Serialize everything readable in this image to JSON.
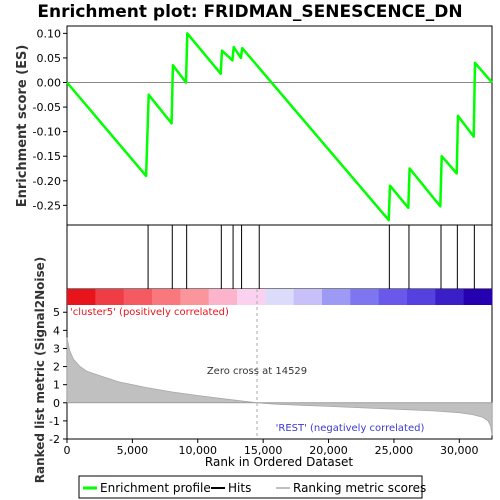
{
  "chart_data": {
    "type": "line",
    "title": "Enrichment plot: FRIDMAN_SENESCENCE_DN",
    "es_panel": {
      "ylabel": "Enrichment score (ES)",
      "ylim": [
        -0.29,
        0.115
      ],
      "yticks": [
        0.1,
        0.05,
        0.0,
        -0.05,
        -0.1,
        -0.15,
        -0.2,
        -0.25
      ],
      "ytick_labels": [
        "0.10",
        "0.05",
        "0.00",
        "-0.05",
        "-0.10",
        "-0.15",
        "-0.20",
        "-0.25"
      ],
      "series": [
        {
          "name": "Enrichment profile",
          "color": "#00ff00",
          "x": [
            0,
            6050,
            6250,
            8000,
            8100,
            9100,
            9200,
            11750,
            11850,
            12650,
            12750,
            13300,
            13400,
            24600,
            24700,
            26100,
            26200,
            28550,
            28650,
            29800,
            29900,
            31100,
            31200,
            32500
          ],
          "y": [
            0.0,
            -0.19,
            -0.025,
            -0.083,
            0.035,
            0.0,
            0.1,
            0.018,
            0.065,
            0.045,
            0.072,
            0.05,
            0.07,
            -0.28,
            -0.21,
            -0.255,
            -0.175,
            -0.252,
            -0.15,
            -0.185,
            -0.068,
            -0.11,
            0.04,
            0.0
          ]
        }
      ]
    },
    "hits": {
      "name": "Hits",
      "color": "#000000",
      "positions": [
        6200,
        8050,
        9150,
        11800,
        12700,
        13350,
        14700,
        24650,
        26150,
        28600,
        29850,
        31150
      ]
    },
    "heatmap_bar": {
      "colors": [
        "#e8141c",
        "#f03c45",
        "#f55a62",
        "#f8787e",
        "#fa969b",
        "#fcb4cc",
        "#fad2f0",
        "#dcdcfa",
        "#c8c0f8",
        "#9d9af5",
        "#7d76f0",
        "#6a58ec",
        "#5540e0",
        "#3a1ec8",
        "#2400b0"
      ]
    },
    "metric_panel": {
      "ylabel": "Ranked list metric (Signal2Noise)",
      "ylim": [
        -2.0,
        5.4
      ],
      "yticks": [
        5,
        4,
        3,
        2,
        1,
        0,
        -1,
        -2
      ],
      "ytick_labels": [
        "5",
        "4",
        "3",
        "2",
        "1",
        "0",
        "-1",
        "-2"
      ],
      "series": [
        {
          "name": "Ranking metric scores",
          "color": "#c0c0c0",
          "x": [
            0,
            200,
            500,
            1000,
            1500,
            2500,
            4000,
            6000,
            8000,
            10000,
            12000,
            14529,
            16000,
            18000,
            20000,
            22000,
            24000,
            26000,
            28000,
            30000,
            31000,
            31800,
            32200,
            32400,
            32500
          ],
          "y": [
            3.6,
            2.9,
            2.4,
            2.0,
            1.75,
            1.5,
            1.15,
            0.85,
            0.6,
            0.4,
            0.22,
            0.0,
            -0.08,
            -0.14,
            -0.2,
            -0.26,
            -0.32,
            -0.38,
            -0.45,
            -0.55,
            -0.65,
            -0.8,
            -1.0,
            -1.3,
            -1.8
          ]
        }
      ],
      "annotations": {
        "positive": "'cluster5' (positively correlated)",
        "negative": "'REST' (negatively correlated)",
        "zero_cross": "Zero cross at 14529"
      },
      "zero_cross": 14529
    },
    "xaxis": {
      "label": "Rank in Ordered Dataset",
      "xlim": [
        0,
        32500
      ],
      "ticks": [
        0,
        5000,
        10000,
        15000,
        20000,
        25000,
        30000
      ],
      "tick_labels": [
        "0",
        "5,000",
        "10,000",
        "15,000",
        "20,000",
        "25,000",
        "30,000"
      ]
    },
    "legend": {
      "placement": "bottom",
      "items": [
        {
          "label": "Enrichment profile",
          "color": "#00ff00"
        },
        {
          "label": "Hits",
          "color": "#000000"
        },
        {
          "label": "Ranking metric scores",
          "color": "#c0c0c0"
        }
      ]
    }
  }
}
